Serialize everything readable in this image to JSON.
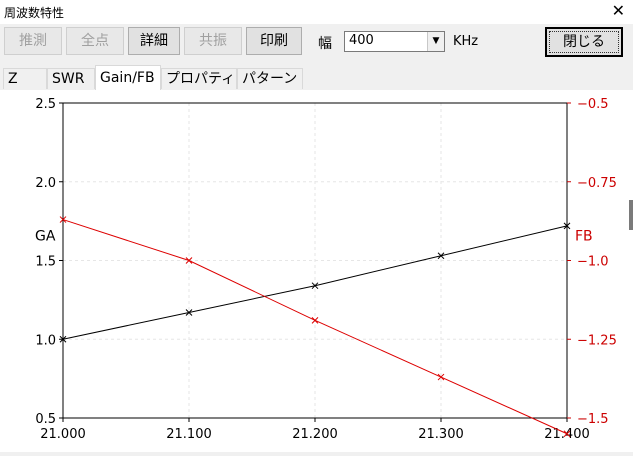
{
  "window": {
    "title": "周波数特性",
    "close_glyph": "✕"
  },
  "toolbar": {
    "buttons": [
      {
        "label": "推測",
        "enabled": false
      },
      {
        "label": "全点",
        "enabled": false
      },
      {
        "label": "詳細",
        "enabled": true
      },
      {
        "label": "共振",
        "enabled": false
      },
      {
        "label": "印刷",
        "enabled": true
      }
    ],
    "width_label": "幅",
    "width_value": "400",
    "unit": "KHz",
    "close_button": "閉じる"
  },
  "tabs": [
    {
      "label": "Z",
      "active": false
    },
    {
      "label": "SWR",
      "active": false
    },
    {
      "label": "Gain/FB",
      "active": true
    },
    {
      "label": "プロパティ",
      "active": false
    },
    {
      "label": "パターン",
      "active": false
    }
  ],
  "chart_data": {
    "type": "line",
    "x": [
      21.0,
      21.1,
      21.2,
      21.3,
      21.4
    ],
    "x_ticks": [
      "21.000",
      "21.100",
      "21.200",
      "21.300",
      "21.400"
    ],
    "xlim": [
      21.0,
      21.4
    ],
    "left_axis": {
      "label": "GA",
      "ylim": [
        0.5,
        2.5
      ],
      "ticks": [
        "2.5",
        "2.0",
        "1.5",
        "1.0",
        "0.5"
      ],
      "color": "#000000"
    },
    "right_axis": {
      "label": "FB",
      "ylim": [
        -1.5,
        -0.5
      ],
      "ticks": [
        "−0.5",
        "−0.75",
        "−1.0",
        "−1.25",
        "−1.5"
      ],
      "color": "#cc0000"
    },
    "series": [
      {
        "axis": "left",
        "color": "#000000",
        "values": [
          1.0,
          1.17,
          1.34,
          1.53,
          1.72
        ]
      },
      {
        "axis": "right",
        "color": "#dd0000",
        "values": [
          -0.87,
          -1.0,
          -1.19,
          -1.37,
          -1.55
        ]
      }
    ],
    "grid": true
  }
}
